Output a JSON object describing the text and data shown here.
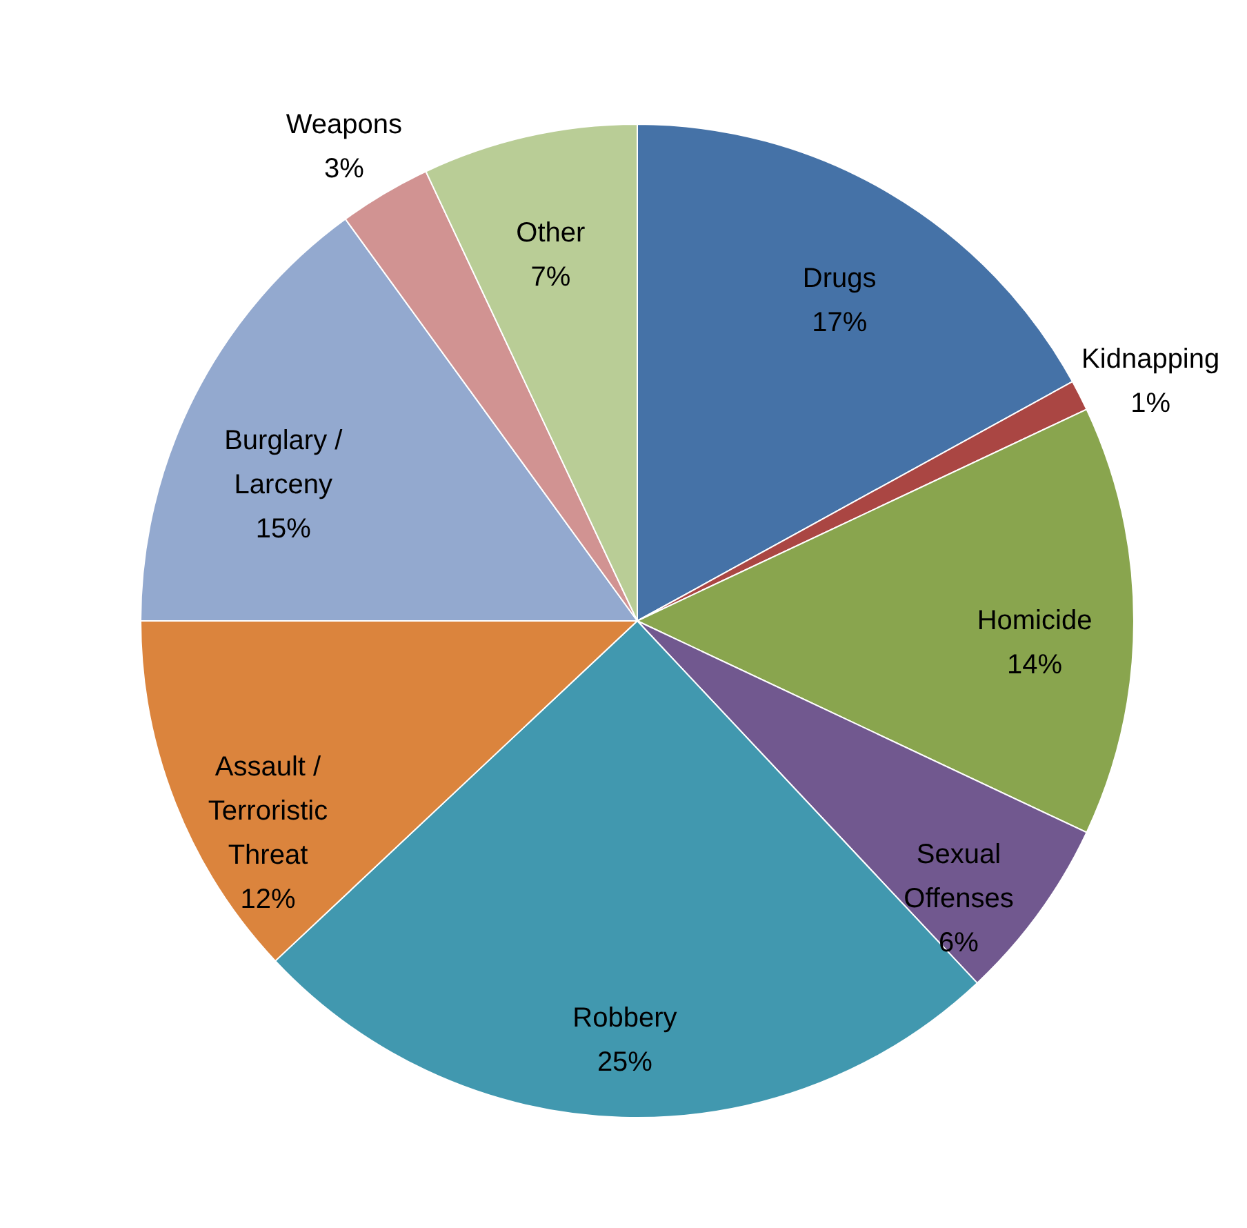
{
  "chart_data": {
    "type": "pie",
    "categories": [
      "Drugs",
      "Kidnapping",
      "Homicide",
      "Sexual Offenses",
      "Robbery",
      "Assault / Terroristic Threat",
      "Burglary / Larceny",
      "Weapons",
      "Other"
    ],
    "values": [
      17,
      1,
      14,
      6,
      25,
      12,
      15,
      3,
      7
    ],
    "value_labels": [
      "17%",
      "1%",
      "14%",
      "6%",
      "25%",
      "12%",
      "15%",
      "3%",
      "7%"
    ],
    "colors": [
      "#4572a7",
      "#aa4643",
      "#89a54e",
      "#71588f",
      "#4198af",
      "#db843d",
      "#93a9cf",
      "#d19392",
      "#b9cd96"
    ]
  }
}
